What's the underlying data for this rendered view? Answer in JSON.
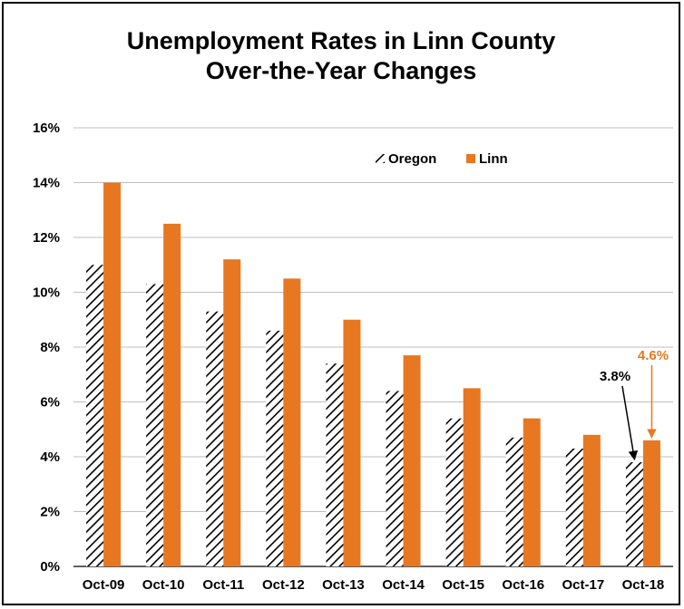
{
  "chart_data": {
    "type": "bar",
    "title": [
      "Unemployment Rates in Linn County",
      "Over-the-Year Changes"
    ],
    "categories": [
      "Oct-09",
      "Oct-10",
      "Oct-11",
      "Oct-12",
      "Oct-13",
      "Oct-14",
      "Oct-15",
      "Oct-16",
      "Oct-17",
      "Oct-18"
    ],
    "series": [
      {
        "name": "Oregon",
        "values": [
          11.0,
          10.3,
          9.3,
          8.6,
          7.4,
          6.4,
          5.4,
          4.7,
          4.3,
          3.8
        ],
        "color": "#000000",
        "pattern": "diagonal-hatch"
      },
      {
        "name": "Linn",
        "values": [
          14.0,
          12.5,
          11.2,
          10.5,
          9.0,
          7.7,
          6.5,
          5.4,
          4.8,
          4.6
        ],
        "color": "#E87722"
      }
    ],
    "ylim": [
      0,
      16
    ],
    "yticks": [
      "0%",
      "2%",
      "4%",
      "6%",
      "8%",
      "10%",
      "12%",
      "14%",
      "16%"
    ],
    "grid": true,
    "legend_position": "top-right",
    "annotations": [
      {
        "text": "3.8%",
        "series": "Oregon",
        "category": "Oct-18",
        "color": "#000000"
      },
      {
        "text": "4.6%",
        "series": "Linn",
        "category": "Oct-18",
        "color": "#E87722"
      }
    ]
  }
}
